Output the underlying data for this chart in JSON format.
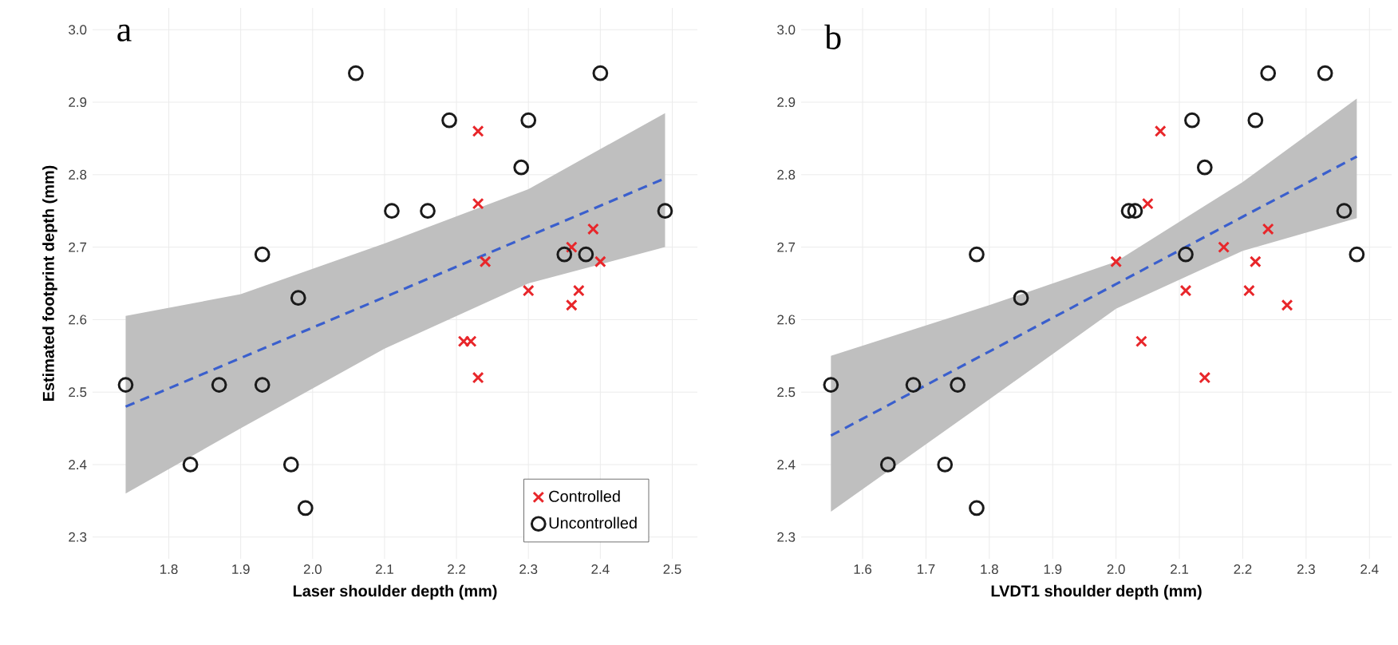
{
  "chart_data": [
    {
      "type": "scatter",
      "xlabel": "Laser shoulder depth (mm)",
      "ylabel": "Estimated footprint depth (mm)",
      "annotations": [
        "a"
      ],
      "xlim": [
        1.694,
        2.535
      ],
      "ylim": [
        2.27,
        3.03
      ],
      "xticks": [
        1.8,
        1.9,
        {
          "value": 2.0,
          "label": "2.0"
        },
        2.1,
        2.2,
        2.3,
        2.4,
        2.5
      ],
      "yticks": [
        2.3,
        2.4,
        2.5,
        2.6,
        2.7,
        2.8,
        2.9,
        {
          "value": 3.0,
          "label": "3.0"
        }
      ],
      "grid": true,
      "legend": "bottom right",
      "series": [
        {
          "name": "Controlled",
          "color": "#e8262a",
          "marker": "cross",
          "x": [
            2.23,
            2.23,
            2.24,
            2.21,
            2.22,
            2.23,
            2.3,
            2.36,
            2.37,
            2.36,
            2.39,
            2.4
          ],
          "values": [
            2.86,
            2.76,
            2.68,
            2.57,
            2.57,
            2.52,
            2.64,
            2.62,
            2.64,
            2.7,
            2.725,
            2.68
          ]
        },
        {
          "name": "Uncontrolled",
          "color": "#1a1a1a",
          "marker": "circle",
          "x": [
            1.74,
            1.83,
            1.87,
            1.93,
            1.93,
            1.98,
            1.97,
            1.99,
            2.06,
            2.11,
            2.16,
            2.19,
            2.29,
            2.3,
            2.35,
            2.38,
            2.4,
            2.49
          ],
          "values": [
            2.51,
            2.4,
            2.51,
            2.51,
            2.69,
            2.63,
            2.4,
            2.34,
            2.94,
            2.75,
            2.75,
            2.875,
            2.81,
            2.875,
            2.69,
            2.69,
            2.94,
            2.75
          ]
        },
        {
          "type": "line",
          "color": "#3a5fcd",
          "line_style": "dashed",
          "x": [
            1.74,
            1.9,
            2.1,
            2.3,
            2.49
          ],
          "values": [
            2.48,
            2.547,
            2.631,
            2.715,
            2.795
          ],
          "lower": [
            2.36,
            2.45,
            2.56,
            2.65,
            2.7
          ],
          "upper": [
            2.605,
            2.635,
            2.705,
            2.78,
            2.885
          ]
        }
      ]
    },
    {
      "type": "scatter",
      "xlabel": "LVDT1 shoulder depth (mm)",
      "annotations": [
        "b"
      ],
      "xlim": [
        1.503,
        2.435
      ],
      "ylim": [
        2.27,
        3.03
      ],
      "xticks": [
        1.6,
        1.7,
        1.8,
        1.9,
        {
          "value": 2.0,
          "label": "2.0"
        },
        2.1,
        2.2,
        2.3,
        2.4
      ],
      "yticks": [
        2.3,
        2.4,
        2.5,
        2.6,
        2.7,
        2.8,
        2.9,
        {
          "value": 3.0,
          "label": "3.0"
        }
      ],
      "grid": true,
      "series": [
        {
          "color": "#e8262a",
          "marker": "cross",
          "x": [
            2.07,
            2.05,
            2.0,
            2.04,
            2.14,
            2.11,
            2.17,
            2.22,
            2.21,
            2.24,
            2.27
          ],
          "values": [
            2.86,
            2.76,
            2.68,
            2.57,
            2.52,
            2.64,
            2.7,
            2.68,
            2.64,
            2.725,
            2.62
          ]
        },
        {
          "color": "#1a1a1a",
          "marker": "circle",
          "x": [
            1.55,
            1.64,
            1.68,
            1.73,
            1.75,
            1.78,
            1.78,
            1.85,
            2.02,
            2.03,
            2.11,
            2.12,
            2.14,
            2.22,
            2.24,
            2.33,
            2.36,
            2.38
          ],
          "values": [
            2.51,
            2.4,
            2.51,
            2.4,
            2.51,
            2.34,
            2.69,
            2.63,
            2.75,
            2.75,
            2.69,
            2.875,
            2.81,
            2.875,
            2.94,
            2.94,
            2.75,
            2.69
          ]
        },
        {
          "type": "line",
          "color": "#3a5fcd",
          "line_style": "dashed",
          "x": [
            1.55,
            1.8,
            2.0,
            2.2,
            2.38
          ],
          "values": [
            2.44,
            2.556,
            2.649,
            2.742,
            2.825
          ],
          "lower": [
            2.335,
            2.49,
            2.615,
            2.695,
            2.74
          ],
          "upper": [
            2.55,
            2.62,
            2.68,
            2.79,
            2.905
          ]
        }
      ]
    }
  ]
}
